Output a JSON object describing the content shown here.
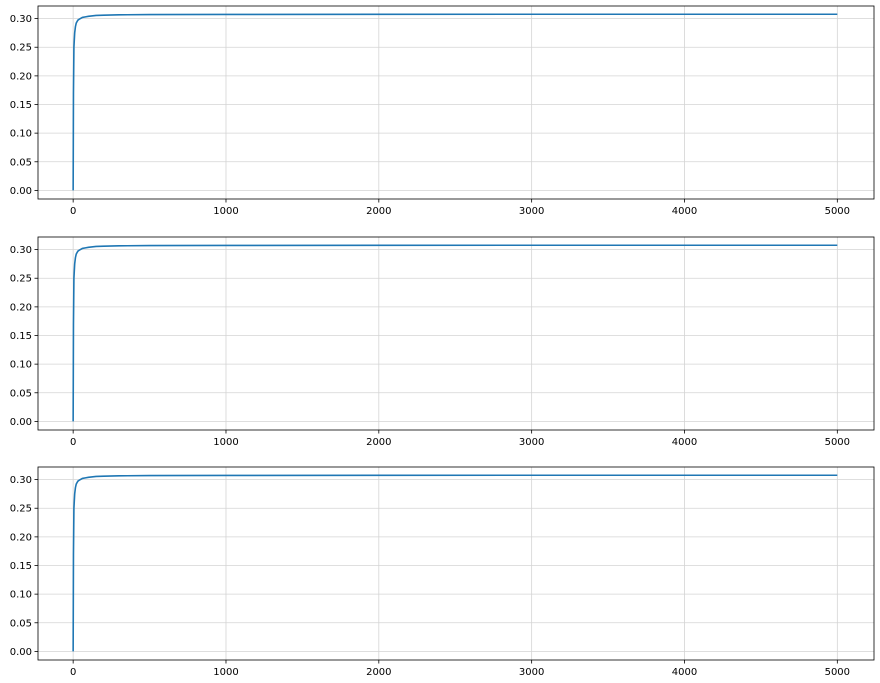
{
  "chart_data": [
    {
      "type": "line",
      "xlim": [
        -230,
        5240
      ],
      "ylim": [
        -0.015,
        0.322
      ],
      "xticks": [
        0,
        1000,
        2000,
        3000,
        4000,
        5000
      ],
      "xtick_labels": [
        "0",
        "1000",
        "2000",
        "3000",
        "4000",
        "5000"
      ],
      "yticks": [
        0.0,
        0.05,
        0.1,
        0.15,
        0.2,
        0.25,
        0.3
      ],
      "ytick_labels": [
        "0.00",
        "0.05",
        "0.10",
        "0.15",
        "0.20",
        "0.25",
        "0.30"
      ],
      "grid": true,
      "line_color": "#1f77b4",
      "series": [
        {
          "x": [
            0,
            2,
            5,
            10,
            15,
            20,
            30,
            40,
            60,
            80,
            100,
            150,
            200,
            300,
            500,
            1000,
            2000,
            3000,
            4000,
            5000
          ],
          "values": [
            0.0,
            0.17,
            0.25,
            0.275,
            0.286,
            0.292,
            0.297,
            0.299,
            0.302,
            0.303,
            0.304,
            0.3055,
            0.306,
            0.3066,
            0.307,
            0.3073,
            0.3075,
            0.3076,
            0.3076,
            0.3076
          ]
        }
      ]
    },
    {
      "type": "line",
      "xlim": [
        -230,
        5240
      ],
      "ylim": [
        -0.015,
        0.322
      ],
      "xticks": [
        0,
        1000,
        2000,
        3000,
        4000,
        5000
      ],
      "xtick_labels": [
        "0",
        "1000",
        "2000",
        "3000",
        "4000",
        "5000"
      ],
      "yticks": [
        0.0,
        0.05,
        0.1,
        0.15,
        0.2,
        0.25,
        0.3
      ],
      "ytick_labels": [
        "0.00",
        "0.05",
        "0.10",
        "0.15",
        "0.20",
        "0.25",
        "0.30"
      ],
      "grid": true,
      "line_color": "#1f77b4",
      "series": [
        {
          "x": [
            0,
            2,
            5,
            10,
            15,
            20,
            30,
            40,
            60,
            80,
            100,
            150,
            200,
            300,
            500,
            1000,
            2000,
            3000,
            4000,
            5000
          ],
          "values": [
            0.0,
            0.17,
            0.25,
            0.275,
            0.286,
            0.292,
            0.297,
            0.299,
            0.302,
            0.303,
            0.304,
            0.3055,
            0.306,
            0.3066,
            0.307,
            0.3073,
            0.3075,
            0.3076,
            0.3076,
            0.3076
          ]
        }
      ]
    },
    {
      "type": "line",
      "xlim": [
        -230,
        5240
      ],
      "ylim": [
        -0.015,
        0.322
      ],
      "xticks": [
        0,
        1000,
        2000,
        3000,
        4000,
        5000
      ],
      "xtick_labels": [
        "0",
        "1000",
        "2000",
        "3000",
        "4000",
        "5000"
      ],
      "yticks": [
        0.0,
        0.05,
        0.1,
        0.15,
        0.2,
        0.25,
        0.3
      ],
      "ytick_labels": [
        "0.00",
        "0.05",
        "0.10",
        "0.15",
        "0.20",
        "0.25",
        "0.30"
      ],
      "grid": true,
      "line_color": "#1f77b4",
      "series": [
        {
          "x": [
            0,
            2,
            5,
            10,
            15,
            20,
            30,
            40,
            60,
            80,
            100,
            150,
            200,
            300,
            500,
            1000,
            2000,
            3000,
            4000,
            5000
          ],
          "values": [
            0.0,
            0.17,
            0.25,
            0.275,
            0.286,
            0.292,
            0.297,
            0.299,
            0.302,
            0.303,
            0.304,
            0.3055,
            0.306,
            0.3066,
            0.307,
            0.3073,
            0.3075,
            0.3076,
            0.3076,
            0.3076
          ]
        }
      ]
    }
  ]
}
